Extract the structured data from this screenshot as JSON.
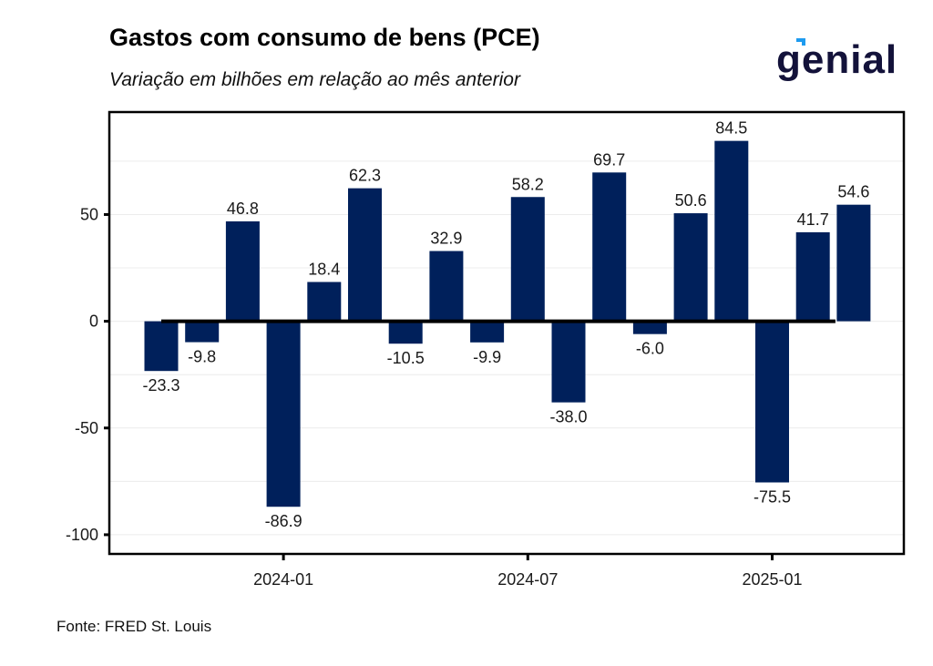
{
  "header": {
    "title": "Gastos com consumo de bens (PCE)",
    "subtitle": "Variação em bilhões em relação ao mês anterior"
  },
  "logo": {
    "text": "genial",
    "accent_color": "#1e9bef",
    "text_color": "#13123a"
  },
  "footer": {
    "source": "Fonte: FRED St. Louis"
  },
  "colors": {
    "bar": "#00205b",
    "zero_line": "#000000",
    "grid": "#ececec",
    "axis": "#000000"
  },
  "chart_data": {
    "type": "bar",
    "title": "Gastos com consumo de bens (PCE)",
    "subtitle": "Variação em bilhões em relação ao mês anterior",
    "xlabel": "",
    "ylabel": "",
    "categories": [
      "2023-10",
      "2023-11",
      "2023-12",
      "2024-01",
      "2024-02",
      "2024-03",
      "2024-04",
      "2024-05",
      "2024-06",
      "2024-07",
      "2024-08",
      "2024-09",
      "2024-10",
      "2024-11",
      "2024-12",
      "2025-01",
      "2025-02",
      "2025-03"
    ],
    "values": [
      -23.3,
      -9.8,
      46.8,
      -86.9,
      18.4,
      62.3,
      -10.5,
      32.9,
      -9.9,
      58.2,
      -38.0,
      69.7,
      -6.0,
      50.6,
      84.5,
      -75.5,
      41.7,
      54.6
    ],
    "data_labels": [
      "-23.3",
      "-9.8",
      "46.8",
      "-86.9",
      "18.4",
      "62.3",
      "-10.5",
      "32.9",
      "-9.9",
      "58.2",
      "-38.0",
      "69.7",
      "-6.0",
      "50.6",
      "84.5",
      "-75.5",
      "41.7",
      "54.6"
    ],
    "x_ticks": [
      {
        "category": "2024-01",
        "label": "2024-01"
      },
      {
        "category": "2024-07",
        "label": "2024-07"
      },
      {
        "category": "2025-01",
        "label": "2025-01"
      }
    ],
    "y_ticks": [
      50,
      0,
      -50,
      -100
    ],
    "y_tick_labels": [
      "50",
      "0",
      "-50",
      "-100"
    ],
    "minor_grid": [
      75,
      25,
      -25,
      -75
    ],
    "ylim": [
      -109,
      98
    ],
    "grid": true,
    "legend": "none",
    "source": "FRED St. Louis"
  }
}
